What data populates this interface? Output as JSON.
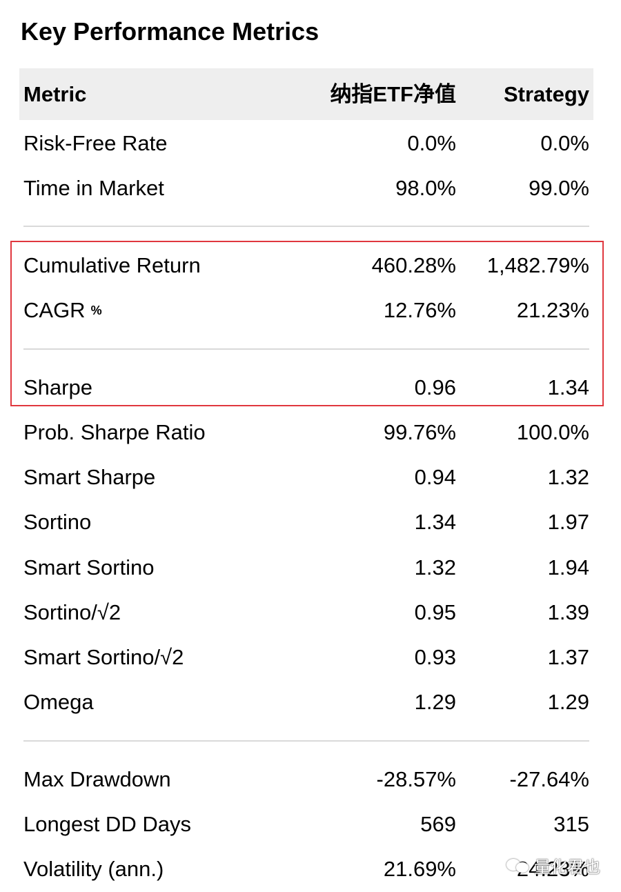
{
  "title": "Key Performance Metrics",
  "columns": {
    "metric": "Metric",
    "benchmark": "纳指ETF净值",
    "strategy": "Strategy"
  },
  "rows": [
    {
      "metric": "Risk-Free Rate",
      "benchmark": "0.0%",
      "strategy": "0.0%"
    },
    {
      "metric": "Time in Market",
      "benchmark": "98.0%",
      "strategy": "99.0%"
    },
    {
      "metric": "Cumulative Return",
      "benchmark": "460.28%",
      "strategy": "1,482.79%"
    },
    {
      "metric": "CAGR",
      "suffix": "%",
      "benchmark": "12.76%",
      "strategy": "21.23%"
    },
    {
      "metric": "Sharpe",
      "benchmark": "0.96",
      "strategy": "1.34"
    },
    {
      "metric": "Prob. Sharpe Ratio",
      "benchmark": "99.76%",
      "strategy": "100.0%"
    },
    {
      "metric": "Smart Sharpe",
      "benchmark": "0.94",
      "strategy": "1.32"
    },
    {
      "metric": "Sortino",
      "benchmark": "1.34",
      "strategy": "1.97"
    },
    {
      "metric": "Smart Sortino",
      "benchmark": "1.32",
      "strategy": "1.94"
    },
    {
      "metric": "Sortino/√2",
      "benchmark": "0.95",
      "strategy": "1.39"
    },
    {
      "metric": "Smart Sortino/√2",
      "benchmark": "0.93",
      "strategy": "1.37"
    },
    {
      "metric": "Omega",
      "benchmark": "1.29",
      "strategy": "1.29"
    },
    {
      "metric": "Max Drawdown",
      "benchmark": "-28.57%",
      "strategy": "-27.64%"
    },
    {
      "metric": "Longest DD Days",
      "benchmark": "569",
      "strategy": "315"
    },
    {
      "metric": "Volatility (ann.)",
      "benchmark": "21.69%",
      "strategy": "24.23%"
    }
  ],
  "watermark": {
    "text": "量化君也",
    "icon": "wechat-icon"
  },
  "colors": {
    "header_bg": "#eeeeee",
    "highlight_border": "#e0373e",
    "divider": "#d9d9d9"
  }
}
